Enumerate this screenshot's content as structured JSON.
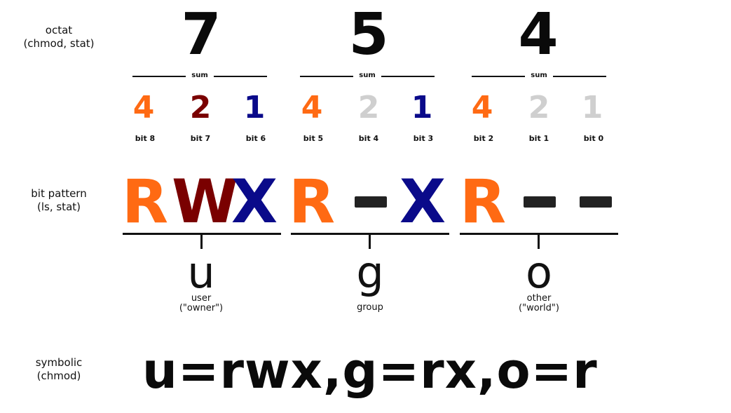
{
  "labels": {
    "octal": [
      "octat",
      "(chmod, stat)"
    ],
    "pattern": [
      "bit pattern",
      "(ls, stat)"
    ],
    "symbolic": [
      "symbolic",
      "(chmod)"
    ]
  },
  "octal_digits": [
    "7",
    "5",
    "4"
  ],
  "sum_label": "sum",
  "bits": [
    {
      "value": "4",
      "label": "bit 8",
      "color": "#ff6a13"
    },
    {
      "value": "2",
      "label": "bit 7",
      "color": "#7a0000"
    },
    {
      "value": "1",
      "label": "bit 6",
      "color": "#0a0a8a"
    },
    {
      "value": "4",
      "label": "bit 5",
      "color": "#ff6a13"
    },
    {
      "value": "2",
      "label": "bit 4",
      "color": "#cfcfcf"
    },
    {
      "value": "1",
      "label": "bit 3",
      "color": "#0a0a8a"
    },
    {
      "value": "4",
      "label": "bit 2",
      "color": "#ff6a13"
    },
    {
      "value": "2",
      "label": "bit 1",
      "color": "#cfcfcf"
    },
    {
      "value": "1",
      "label": "bit 0",
      "color": "#cfcfcf"
    }
  ],
  "pattern": [
    {
      "char": "R",
      "color": "#ff6a13"
    },
    {
      "char": "W",
      "color": "#7a0000"
    },
    {
      "char": "X",
      "color": "#0a0a8a"
    },
    {
      "char": "R",
      "color": "#ff6a13"
    },
    {
      "char": "-",
      "color": "#222222"
    },
    {
      "char": "X",
      "color": "#0a0a8a"
    },
    {
      "char": "R",
      "color": "#ff6a13"
    },
    {
      "char": "-",
      "color": "#222222"
    },
    {
      "char": "-",
      "color": "#222222"
    }
  ],
  "groups": [
    {
      "letter": "u",
      "name": [
        "user",
        "(\"owner\")"
      ]
    },
    {
      "letter": "g",
      "name": [
        "group"
      ]
    },
    {
      "letter": "o",
      "name": [
        "other",
        "(\"world\")"
      ]
    }
  ],
  "symbolic": "u=rwx,g=rx,o=r"
}
